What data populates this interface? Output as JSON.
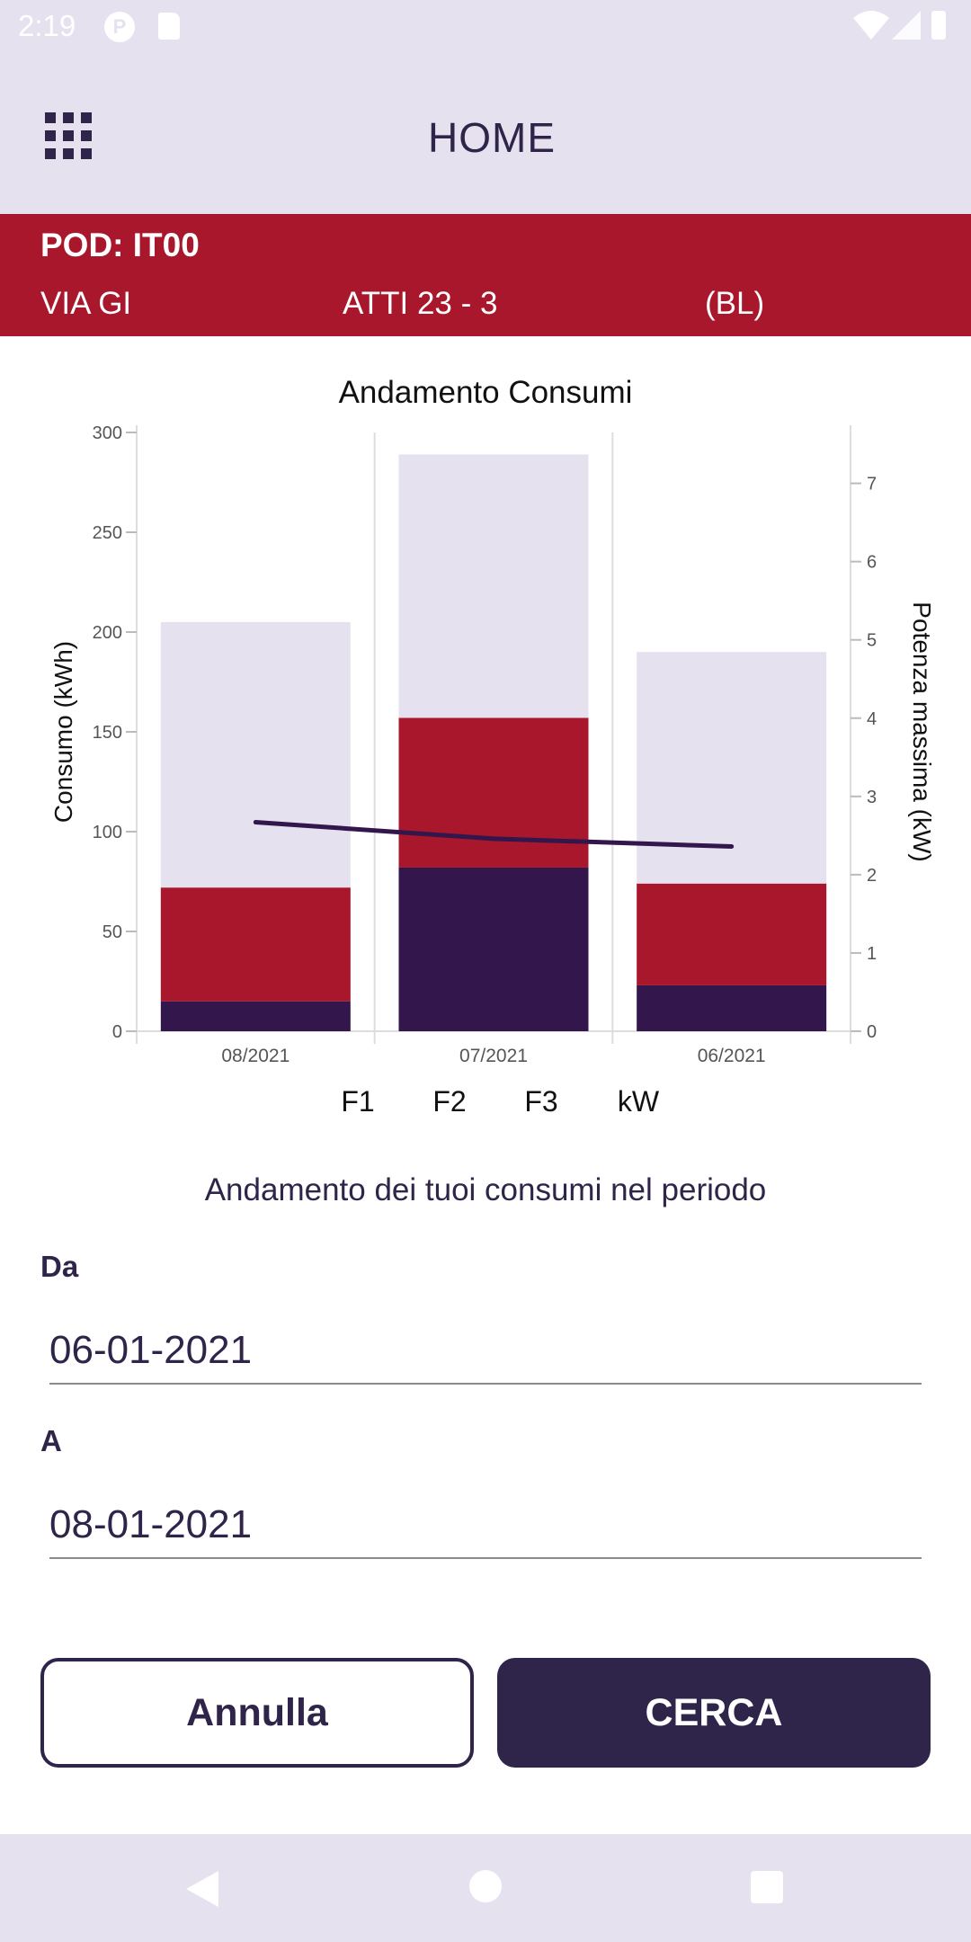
{
  "status_bar": {
    "time": "2:19",
    "icons": [
      "pocket-casts-icon",
      "sd-card-icon",
      "wifi-icon",
      "signal-icon",
      "battery-icon"
    ]
  },
  "app_bar": {
    "title": "HOME",
    "menu_icon": "grid-icon"
  },
  "pod": {
    "label": "POD: IT00",
    "address_parts": [
      "VIA GI",
      "ATTI 23 - 3",
      "(BL)"
    ]
  },
  "colors": {
    "accent_red": "#a8172b",
    "primary_dark": "#2f2449",
    "surface_light": "#e6e1ef",
    "f1": "#33174c",
    "f2": "#a8172b",
    "f3": "#e6e1ef",
    "kw_line": "#33174c"
  },
  "chart_data": {
    "type": "bar",
    "title": "Andamento Consumi",
    "categories": [
      "08/2021",
      "07/2021",
      "06/2021"
    ],
    "series": [
      {
        "name": "F1",
        "values": [
          15,
          82,
          23
        ]
      },
      {
        "name": "F2",
        "values": [
          57,
          75,
          51
        ]
      },
      {
        "name": "F3",
        "values": [
          133,
          132,
          116
        ]
      }
    ],
    "line_series": {
      "name": "kW",
      "values": [
        2.67,
        2.46,
        2.36
      ]
    },
    "ylabel": "Consumo (kWh)",
    "ylim": [
      0,
      300
    ],
    "yticks": [
      "0",
      "50",
      "100",
      "150",
      "200",
      "250",
      "300"
    ],
    "y2label": "Potenza massima (kW)",
    "y2lim": [
      0,
      7.65
    ],
    "y2ticks": [
      "0",
      "1",
      "2",
      "3",
      "4",
      "5",
      "6",
      "7"
    ],
    "legend": [
      "F1",
      "F2",
      "F3",
      "kW"
    ],
    "legend_position": "bottom"
  },
  "period": {
    "caption": "Andamento dei tuoi consumi nel periodo",
    "from_label": "Da",
    "from_value": "06-01-2021",
    "to_label": "A",
    "to_value": "08-01-2021"
  },
  "buttons": {
    "cancel": "Annulla",
    "search": "CERCA"
  }
}
